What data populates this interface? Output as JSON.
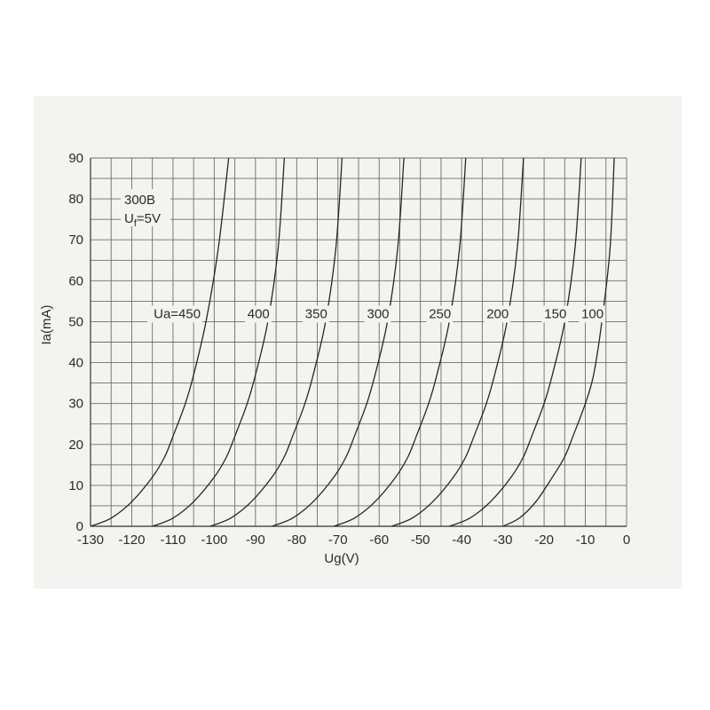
{
  "chart_data": {
    "type": "line",
    "title": "",
    "xlabel": "Ug(V)",
    "ylabel": "Ia(mA)",
    "xlim": [
      -130,
      0
    ],
    "ylim": [
      0,
      90
    ],
    "x_ticks": [
      -130,
      -120,
      -110,
      -100,
      -90,
      -80,
      -70,
      -60,
      -50,
      -40,
      -30,
      -20,
      -10,
      0
    ],
    "y_ticks": [
      0,
      10,
      20,
      30,
      40,
      50,
      60,
      70,
      80,
      90
    ],
    "x_tick_labels": [
      "-130",
      "-120",
      "-110",
      "-100",
      "-90",
      "-80",
      "-70",
      "-60",
      "-50",
      "-40",
      "-30",
      "-20",
      "-10",
      "0"
    ],
    "y_tick_labels": [
      "0",
      "10",
      "20",
      "30",
      "40",
      "50",
      "60",
      "70",
      "80",
      "90"
    ],
    "grid": true,
    "annotations": {
      "tube": "300B",
      "filament_main": "U",
      "filament_sub": "f",
      "filament_value": "=5V"
    },
    "series": [
      {
        "name": "Ua=450",
        "x": [
          -130,
          -125,
          -120,
          -115,
          -112,
          -110,
          -107,
          -105,
          -102,
          -99,
          -96.5
        ],
        "y": [
          0,
          2,
          6,
          12,
          17,
          22,
          30,
          37,
          50,
          68,
          90
        ]
      },
      {
        "name": "400",
        "x": [
          -115,
          -110,
          -105,
          -100,
          -97,
          -95,
          -92,
          -90,
          -87,
          -84.5,
          -83
        ],
        "y": [
          0,
          2,
          6,
          12,
          17,
          22,
          30,
          37,
          50,
          68,
          90
        ]
      },
      {
        "name": "350",
        "x": [
          -101,
          -96,
          -91,
          -86,
          -83,
          -81,
          -78,
          -76,
          -73,
          -70.5,
          -69
        ],
        "y": [
          0,
          2,
          6,
          12,
          17,
          22,
          30,
          37,
          50,
          68,
          90
        ]
      },
      {
        "name": "300",
        "x": [
          -86,
          -81,
          -76,
          -71,
          -68,
          -66,
          -63,
          -61,
          -58,
          -55.5,
          -54
        ],
        "y": [
          0,
          2,
          6,
          12,
          17,
          22,
          30,
          37,
          50,
          68,
          90
        ]
      },
      {
        "name": "250",
        "x": [
          -71,
          -66,
          -61,
          -56,
          -53,
          -51,
          -48,
          -46,
          -43,
          -40.5,
          -39
        ],
        "y": [
          0,
          2,
          6,
          12,
          17,
          22,
          30,
          37,
          50,
          68,
          90
        ]
      },
      {
        "name": "200",
        "x": [
          -57,
          -52,
          -47,
          -42,
          -39,
          -37,
          -34,
          -32,
          -29,
          -26.5,
          -25
        ],
        "y": [
          0,
          2,
          6,
          12,
          17,
          22,
          30,
          37,
          50,
          68,
          90
        ]
      },
      {
        "name": "150",
        "x": [
          -43,
          -38,
          -33,
          -28,
          -25,
          -23,
          -20,
          -18,
          -15,
          -12.5,
          -11
        ],
        "y": [
          0,
          2,
          6,
          12,
          17,
          22,
          30,
          37,
          50,
          68,
          90
        ]
      },
      {
        "name": "100",
        "x": [
          -30,
          -26,
          -22,
          -18,
          -15,
          -13,
          -10,
          -8,
          -6,
          -4,
          -3
        ],
        "y": [
          0,
          2,
          6,
          12,
          17,
          22,
          30,
          37,
          50,
          68,
          90
        ]
      }
    ]
  }
}
